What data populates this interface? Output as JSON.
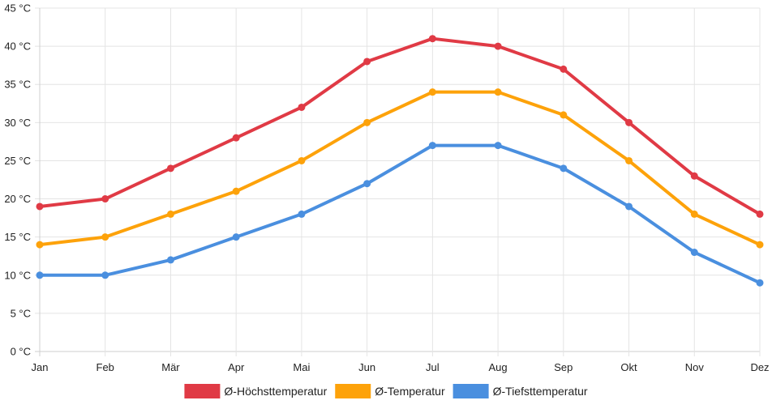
{
  "chart_data": {
    "type": "line",
    "title": "",
    "xlabel": "",
    "ylabel": "",
    "categories": [
      "Jan",
      "Feb",
      "Mär",
      "Apr",
      "Mai",
      "Jun",
      "Jul",
      "Aug",
      "Sep",
      "Okt",
      "Nov",
      "Dez"
    ],
    "ylim": [
      0,
      45
    ],
    "y_ticks": [
      "0 °C",
      "5 °C",
      "10 °C",
      "15 °C",
      "20 °C",
      "25 °C",
      "30 °C",
      "35 °C",
      "40 °C",
      "45 °C"
    ],
    "grid": true,
    "legend_position": "bottom",
    "series": [
      {
        "name": "Ø-Höchsttemperatur",
        "color": "#e03a45",
        "values": [
          19,
          20,
          24,
          28,
          32,
          38,
          41,
          40,
          37,
          30,
          23,
          18
        ]
      },
      {
        "name": "Ø-Temperatur",
        "color": "#fda20a",
        "values": [
          14,
          15,
          18,
          21,
          25,
          30,
          34,
          34,
          31,
          25,
          18,
          14
        ]
      },
      {
        "name": "Ø-Tiefsttemperatur",
        "color": "#4a8fdf",
        "values": [
          10,
          10,
          12,
          15,
          18,
          22,
          27,
          27,
          24,
          19,
          13,
          9
        ]
      }
    ]
  }
}
